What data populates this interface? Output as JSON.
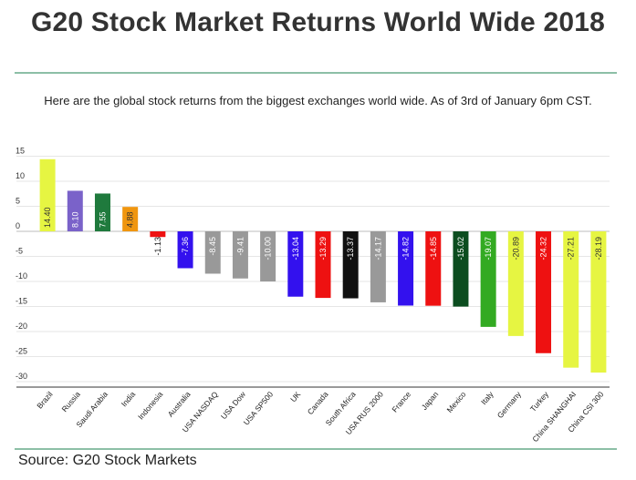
{
  "header": {
    "title": "G20 Stock Market Returns World Wide 2018",
    "subtitle": "Here are the global stock returns from the biggest exchanges world wide. As of 3rd of January 6pm CST.",
    "source": "Source: G20 Stock Markets"
  },
  "chart_data": {
    "type": "bar",
    "title": "",
    "xlabel": "",
    "ylabel": "",
    "ylim": [
      -30,
      15
    ],
    "y_ticks": [
      15,
      10,
      5,
      0,
      -5,
      -10,
      -15,
      -20,
      -25,
      -30
    ],
    "grid": true,
    "categories": [
      "Brazil",
      "Russia",
      "Saudi Arabia",
      "India",
      "Indonesia",
      "Australia",
      "USA NASDAQ",
      "USA Dow",
      "USA SP500",
      "UK",
      "Canada",
      "South Africa",
      "USA RUS 2000",
      "France",
      "Japan",
      "Mexico",
      "Italy",
      "Germany",
      "Turkey",
      "China SHANGHAI",
      "China CSI 300"
    ],
    "values": [
      14.4,
      8.1,
      7.55,
      4.88,
      -1.13,
      -7.36,
      -8.45,
      -9.41,
      -10.0,
      -13.04,
      -13.29,
      -13.37,
      -14.17,
      -14.82,
      -14.85,
      -15.02,
      -19.07,
      -20.89,
      -24.32,
      -27.21,
      -28.19
    ],
    "value_labels": [
      "14.40",
      "8.10",
      "7.55",
      "4.88",
      "-1.13",
      "-7.36",
      "-8.45",
      "-9.41",
      "-10.00",
      "-13.04",
      "-13.29",
      "-13.37",
      "-14.17",
      "-14.82",
      "-14.85",
      "-15.02",
      "-19.07",
      "-20.89",
      "-24.32",
      "-27.21",
      "-28.19"
    ],
    "colors": [
      "#e6f542",
      "#7a62c9",
      "#1f7a3d",
      "#f0960f",
      "#ee1111",
      "#3311ee",
      "#999999",
      "#999999",
      "#999999",
      "#3311ee",
      "#ee1111",
      "#111111",
      "#999999",
      "#3311ee",
      "#ee1111",
      "#0c4d1f",
      "#33aa22",
      "#e6f542",
      "#ee1111",
      "#e6f542",
      "#e6f542"
    ],
    "label_colors": [
      "#333333",
      "#ffffff",
      "#ffffff",
      "#333333",
      "#111111",
      "#ffffff",
      "#ffffff",
      "#ffffff",
      "#ffffff",
      "#ffffff",
      "#ffffff",
      "#ffffff",
      "#ffffff",
      "#ffffff",
      "#ffffff",
      "#ffffff",
      "#ffffff",
      "#333333",
      "#ffffff",
      "#333333",
      "#333333"
    ]
  }
}
